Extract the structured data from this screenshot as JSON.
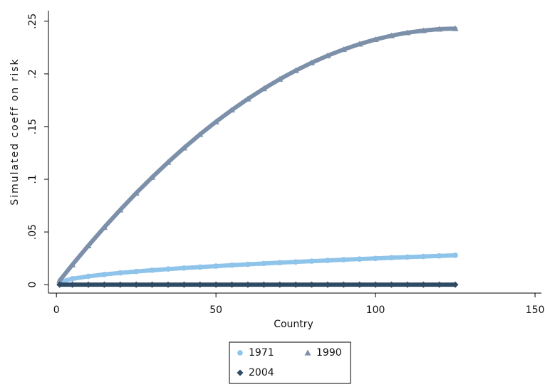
{
  "chart_data": {
    "type": "scatter",
    "x_label": "Country",
    "y_label": "Simulated coeff on risk",
    "x": [
      1,
      5,
      10,
      15,
      20,
      25,
      30,
      35,
      40,
      45,
      50,
      55,
      60,
      65,
      70,
      75,
      80,
      85,
      90,
      95,
      100,
      105,
      110,
      115,
      120,
      125
    ],
    "series": [
      {
        "name": "1971",
        "color": "#8ec3ea",
        "marker": "circle",
        "values": [
          0.0025,
          0.0056,
          0.0079,
          0.0097,
          0.0112,
          0.0125,
          0.0137,
          0.0148,
          0.0158,
          0.0167,
          0.0176,
          0.0185,
          0.0193,
          0.0201,
          0.0209,
          0.0216,
          0.0223,
          0.023,
          0.0237,
          0.0243,
          0.0249,
          0.0256,
          0.0262,
          0.0267,
          0.0273,
          0.0279
        ]
      },
      {
        "name": "1990",
        "color": "#7d90aa",
        "marker": "triangle",
        "values": [
          0.0038,
          0.0189,
          0.037,
          0.0544,
          0.071,
          0.0869,
          0.1019,
          0.1162,
          0.1298,
          0.1426,
          0.1546,
          0.1658,
          0.1763,
          0.186,
          0.195,
          0.2032,
          0.2106,
          0.2173,
          0.2232,
          0.2283,
          0.2327,
          0.2363,
          0.2391,
          0.2411,
          0.2425,
          0.243
        ]
      },
      {
        "name": "2004",
        "color": "#2f4a63",
        "marker": "diamond",
        "values": [
          0,
          0,
          0,
          0,
          0,
          0,
          0,
          0,
          0,
          0,
          0,
          0,
          0,
          0,
          0,
          0,
          0,
          0,
          0,
          0,
          0,
          0,
          0,
          0,
          0,
          0
        ]
      }
    ],
    "xlim": [
      -2.5,
      152
    ],
    "xticks": [
      0,
      50,
      100,
      150
    ],
    "ylim": [
      -0.008,
      0.26
    ],
    "yticks": [
      0,
      {
        "value": 0.05,
        "label": ".05"
      },
      {
        "value": 0.1,
        "label": ".1"
      },
      {
        "value": 0.15,
        "label": ".15"
      },
      {
        "value": 0.2,
        "label": ".2"
      },
      {
        "value": 0.25,
        "label": ".25"
      }
    ],
    "grid": false
  }
}
